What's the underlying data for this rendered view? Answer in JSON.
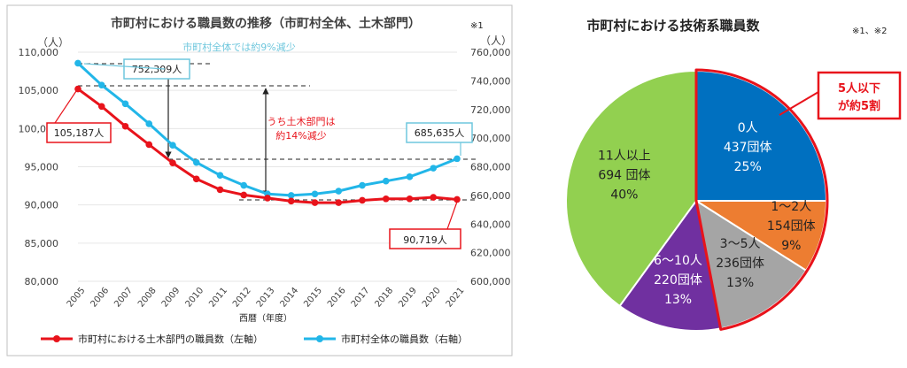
{
  "line_chart": {
    "title": "市町村における職員数の推移（市町村全体、土木部門）",
    "note_mark": "※1",
    "left_unit": "（人）",
    "right_unit": "（人）",
    "xlabel": "西暦（年度）",
    "annotations": {
      "overall": "市町村全体では約9%減少",
      "civil_line1": "うち土木部門は",
      "civil_line2": "約14%減少",
      "start_civil": "105,187人",
      "start_overall": "752,309人",
      "end_overall": "685,635人",
      "end_civil": "90,719人"
    },
    "colors": {
      "civil": "#e8131b",
      "overall": "#22b6e8",
      "annotation_red": "#e8131b",
      "annotation_cyan": "#6fc7dd"
    }
  },
  "pie_chart": {
    "title": "市町村における技術系職員数",
    "note_mark": "※1、※2",
    "callout_line1": "5人以下",
    "callout_line2": "が約5割",
    "colors": [
      "#0070c0",
      "#ed7d31",
      "#a5a5a5",
      "#7030a0",
      "#92d050"
    ],
    "highlight_color": "#e8131b"
  },
  "chart_data": [
    {
      "type": "line",
      "title": "市町村における職員数の推移（市町村全体、土木部門）",
      "xlabel": "西暦（年度）",
      "categories": [
        "2005",
        "2006",
        "2007",
        "2008",
        "2009",
        "2010",
        "2011",
        "2012",
        "2013",
        "2014",
        "2015",
        "2016",
        "2017",
        "2018",
        "2019",
        "2020",
        "2021"
      ],
      "y_left": {
        "unit": "（人）",
        "min": 80000,
        "max": 110000,
        "ticks": [
          "80,000",
          "85,000",
          "90,000",
          "95,000",
          "100,000",
          "105,000",
          "110,000"
        ]
      },
      "y_right": {
        "unit": "（人）",
        "min": 600000,
        "max": 760000,
        "ticks": [
          "600,000",
          "620,000",
          "640,000",
          "660,000",
          "680,000",
          "700,000",
          "720,000",
          "740,000",
          "760,000"
        ]
      },
      "series": [
        {
          "name": "市町村における土木部門の職員数（左軸）",
          "axis": "left",
          "values": [
            105187,
            102900,
            100300,
            97900,
            95500,
            93400,
            92000,
            91300,
            90900,
            90500,
            90300,
            90300,
            90600,
            90800,
            90800,
            91000,
            90719
          ]
        },
        {
          "name": "市町村全体の職員数（右軸）",
          "axis": "right",
          "values": [
            752309,
            737000,
            724000,
            710000,
            695000,
            683000,
            674000,
            667000,
            661000,
            660000,
            661000,
            663000,
            667000,
            670000,
            673000,
            679000,
            685635
          ]
        }
      ],
      "legend_placement": "bottom"
    },
    {
      "type": "pie",
      "title": "市町村における技術系職員数",
      "slices": [
        {
          "label_lines": [
            "0人",
            "437団体",
            "25%"
          ],
          "value": 25
        },
        {
          "label_lines": [
            "1～2人",
            "154団体",
            "9%"
          ],
          "value": 9
        },
        {
          "label_lines": [
            "3～5人",
            "236団体",
            "13%"
          ],
          "value": 13
        },
        {
          "label_lines": [
            "6～10人",
            "220団体",
            "13%"
          ],
          "value": 13
        },
        {
          "label_lines": [
            "11人以上",
            "694 団体",
            "40%"
          ],
          "value": 40
        }
      ]
    }
  ]
}
